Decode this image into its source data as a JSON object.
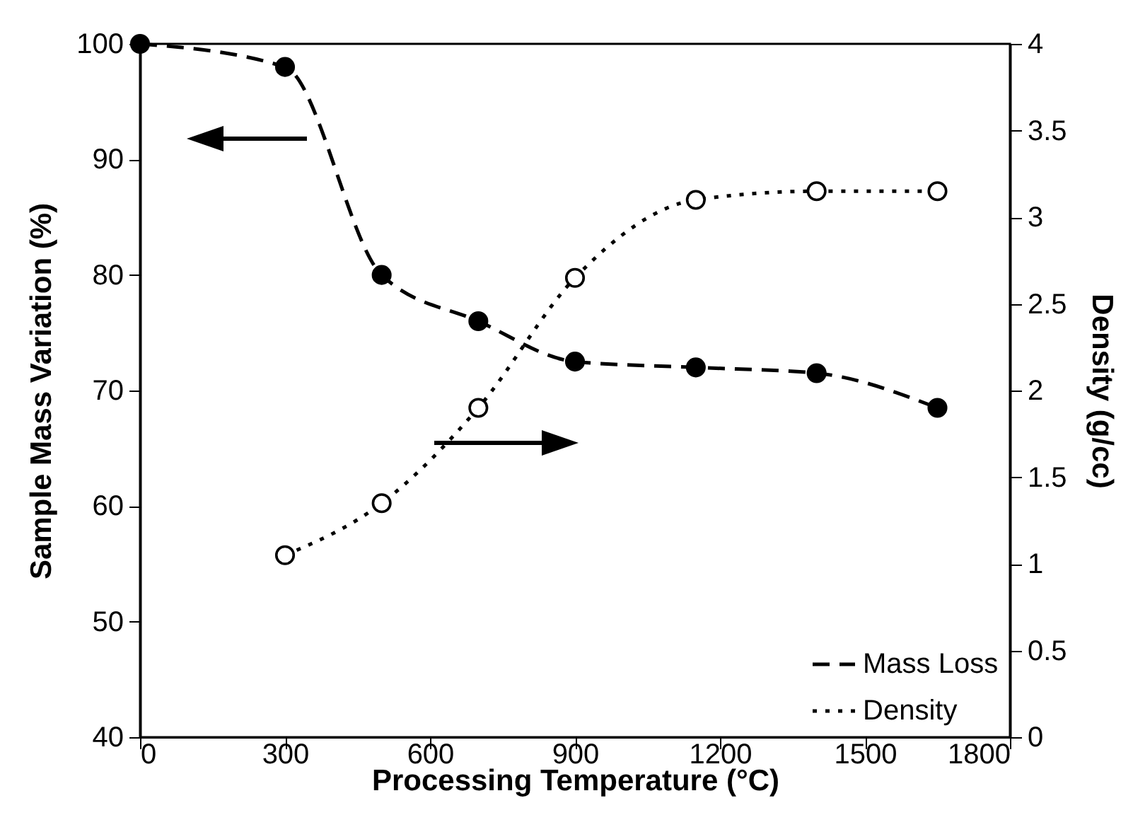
{
  "chart_data": {
    "type": "line",
    "xlabel": "Processing Temperature (°C)",
    "ylabel": "Sample Mass Variation (%)",
    "y2label": "Density (g/cc)",
    "xlim": [
      0,
      1800
    ],
    "xticks": [
      0,
      300,
      600,
      900,
      1200,
      1500,
      1800
    ],
    "ylim": [
      40,
      100
    ],
    "yticks": [
      40,
      50,
      60,
      70,
      80,
      90,
      100
    ],
    "y2lim": [
      0,
      4
    ],
    "y2ticks": [
      0,
      0.5,
      1,
      1.5,
      2,
      2.5,
      3,
      3.5,
      4
    ],
    "legend": "bottom right",
    "marker": "circle",
    "series": [
      {
        "name": "Mass Loss",
        "color": "#000000",
        "line_style": "dashed",
        "x": [
          0,
          300,
          500,
          700,
          900,
          1150,
          1400,
          1650
        ],
        "values": [
          100,
          98,
          80,
          76,
          72.5,
          72,
          71.5,
          68.5
        ]
      },
      {
        "name": "Density",
        "color": "#000000",
        "line_style": "dotted",
        "axis": "y2",
        "x": [
          300,
          500,
          700,
          900,
          1150,
          1400,
          1650
        ],
        "values": [
          1.05,
          1.35,
          1.9,
          2.65,
          3.1,
          3.15,
          3.15
        ]
      }
    ]
  }
}
